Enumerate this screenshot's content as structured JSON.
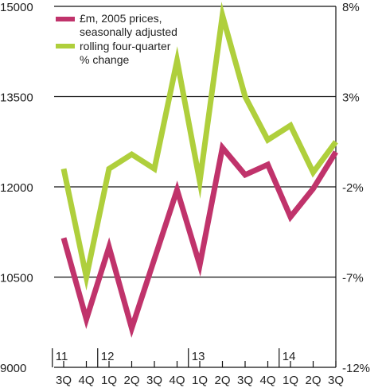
{
  "chart_data": {
    "type": "line",
    "x": [
      "3Q",
      "4Q",
      "1Q",
      "2Q",
      "3Q",
      "4Q",
      "1Q",
      "2Q",
      "3Q",
      "4Q",
      "1Q",
      "2Q",
      "3Q"
    ],
    "year_labels": [
      {
        "label": "11",
        "index": 0
      },
      {
        "label": "12",
        "index": 2
      },
      {
        "label": "13",
        "index": 6
      },
      {
        "label": "14",
        "index": 10
      }
    ],
    "y_left": {
      "ticks": [
        "15000",
        "13500",
        "12000",
        "10500",
        "9000"
      ],
      "ylim": [
        9000,
        15000
      ]
    },
    "y_right": {
      "ticks": [
        "8%",
        "3%",
        "-2%",
        "-7%",
        "-12%"
      ],
      "ylim": [
        -12,
        8
      ]
    },
    "grid": true,
    "legend": "top-left",
    "series": [
      {
        "name": "£m, 2005 prices, seasonally adjusted",
        "axis": "left",
        "color": "#c0336b",
        "values": [
          11150,
          9800,
          11000,
          9650,
          10800,
          11950,
          10700,
          12650,
          12200,
          12370,
          11500,
          11970,
          12580
        ]
      },
      {
        "name": "rolling four-quarter % change",
        "axis": "right",
        "color": "#afcf3c",
        "values": [
          -1.0,
          -7.0,
          -1.0,
          -0.2,
          -1.0,
          5.0,
          -1.7,
          7.5,
          3.0,
          0.6,
          1.4,
          -1.2,
          0.5
        ]
      }
    ]
  }
}
